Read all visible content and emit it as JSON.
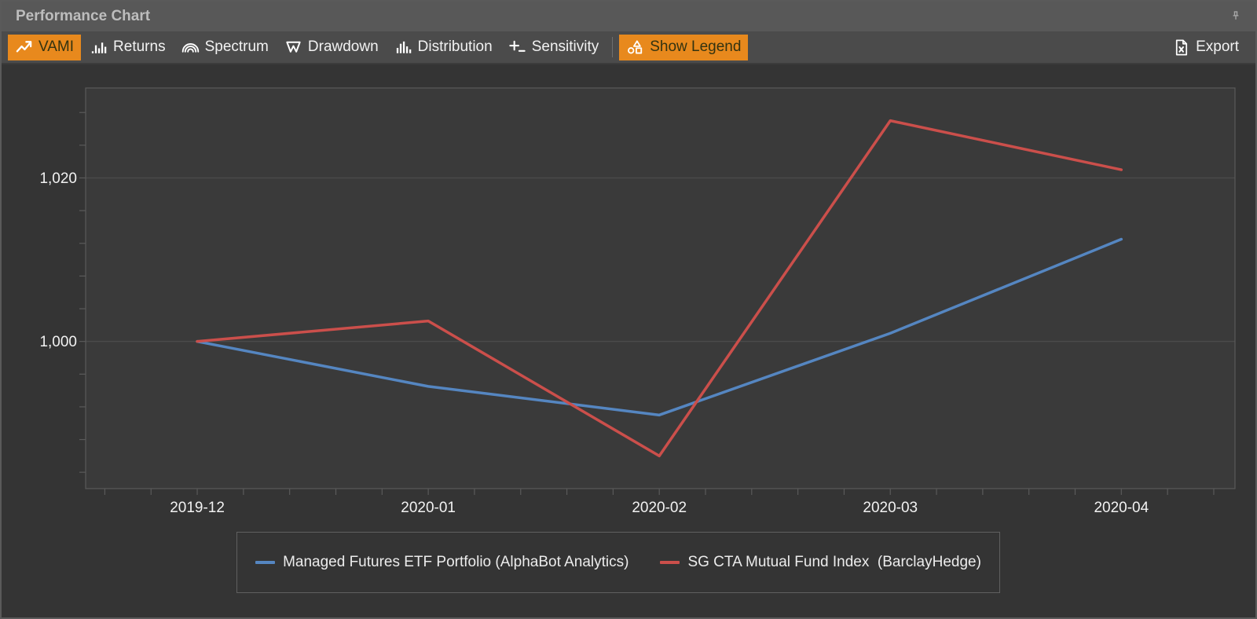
{
  "panel": {
    "title": "Performance Chart"
  },
  "toolbar": {
    "buttons": [
      {
        "id": "vami",
        "label": "VAMI",
        "active": true,
        "icon": "trend-up-icon"
      },
      {
        "id": "returns",
        "label": "Returns",
        "active": false,
        "icon": "bar-chart-icon"
      },
      {
        "id": "spectrum",
        "label": "Spectrum",
        "active": false,
        "icon": "spectrum-arcs-icon"
      },
      {
        "id": "drawdown",
        "label": "Drawdown",
        "active": false,
        "icon": "drawdown-crown-icon"
      },
      {
        "id": "distribution",
        "label": "Distribution",
        "active": false,
        "icon": "histogram-icon"
      },
      {
        "id": "sensitivity",
        "label": "Sensitivity",
        "active": false,
        "icon": "plus-baseline-icon"
      }
    ],
    "show_legend_label": "Show Legend",
    "export_label": "Export"
  },
  "colors": {
    "accent_orange": "#e8891d",
    "titlebar_bg": "#585858",
    "toolbar_bg": "#4b4b4b",
    "panel_bg": "#343434",
    "plot_bg": "#3a3a3a",
    "frame": "#5a5a5a",
    "gridline": "#4a4a4a",
    "axis_text": "#f2f2f2",
    "series_blue": "#5586c1",
    "series_red": "#cb4f4b"
  },
  "chart_data": {
    "type": "line",
    "title": "Performance Chart (VAMI)",
    "xlabel": "",
    "ylabel": "",
    "categories": [
      "2019-12",
      "2020-01",
      "2020-02",
      "2020-03",
      "2020-04"
    ],
    "series": [
      {
        "name": "Managed Futures ETF Portfolio (AlphaBot Analytics)",
        "color": "#5586c1",
        "values": [
          1000,
          994.5,
          991,
          1001,
          1012.5
        ]
      },
      {
        "name": "SG CTA Mutual Fund Index  (BarclayHedge)",
        "color": "#cb4f4b",
        "values": [
          1000,
          1002.5,
          986,
          1027,
          1021
        ]
      }
    ],
    "ylim": [
      982,
      1031
    ],
    "y_ticks": [
      {
        "value": 1000,
        "label": "1,000"
      },
      {
        "value": 1020,
        "label": "1,020"
      }
    ],
    "y_minor_step": 4,
    "x_minor_per_major": 5,
    "grid": "horizontal major gridlines only",
    "legend_position": "bottom"
  }
}
